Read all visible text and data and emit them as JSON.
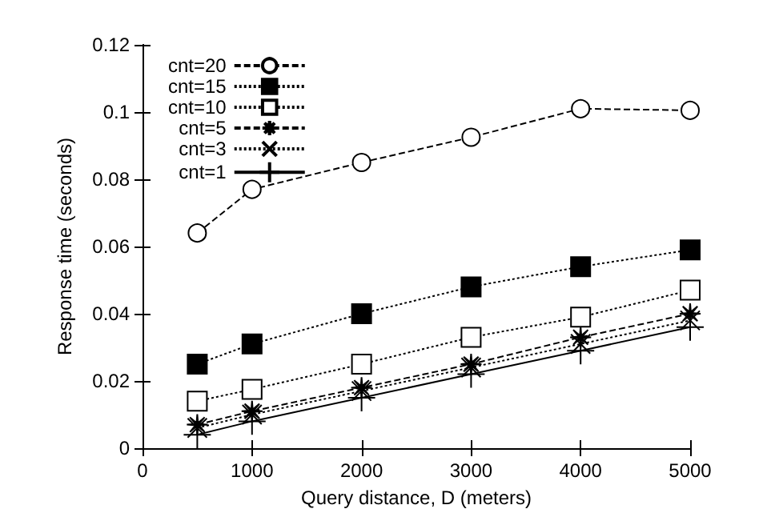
{
  "chart_data": {
    "type": "line",
    "xlabel": "Query distance, D (meters)",
    "ylabel": "Response time (seconds)",
    "x": [
      500,
      1000,
      2000,
      3000,
      4000,
      5000
    ],
    "xlim": [
      0,
      5000
    ],
    "xticks": [
      0,
      1000,
      2000,
      3000,
      4000,
      5000
    ],
    "ylim": [
      0,
      0.12
    ],
    "yticks": [
      0,
      0.02,
      0.04,
      0.06,
      0.08,
      0.1,
      0.12
    ],
    "grid": false,
    "legend": "top left",
    "series": [
      {
        "name": "cnt=20",
        "color": "#000000",
        "marker": "circle",
        "line_style": "dashed",
        "values": [
          0.064,
          0.077,
          0.085,
          0.0925,
          0.101,
          0.1005
        ]
      },
      {
        "name": "cnt=15",
        "color": "#000000",
        "marker": "square",
        "line_style": "dotted",
        "values": [
          0.025,
          0.031,
          0.04,
          0.048,
          0.054,
          0.059
        ]
      },
      {
        "name": "cnt=10",
        "color": "#000000",
        "marker": "square",
        "line_style": "dotted",
        "values": [
          0.014,
          0.0175,
          0.025,
          0.033,
          0.039,
          0.047
        ]
      },
      {
        "name": "cnt=5",
        "color": "#000000",
        "marker": "star",
        "line_style": "dashed",
        "values": [
          0.007,
          0.011,
          0.018,
          0.025,
          0.033,
          0.04
        ]
      },
      {
        "name": "cnt=3",
        "color": "#000000",
        "marker": "cross",
        "line_style": "dotted",
        "values": [
          0.006,
          0.01,
          0.017,
          0.024,
          0.031,
          0.038
        ]
      },
      {
        "name": "cnt=1",
        "color": "#000000",
        "marker": "cross",
        "line_style": "solid",
        "values": [
          0.004,
          0.008,
          0.015,
          0.022,
          0.029,
          0.036
        ]
      }
    ]
  }
}
